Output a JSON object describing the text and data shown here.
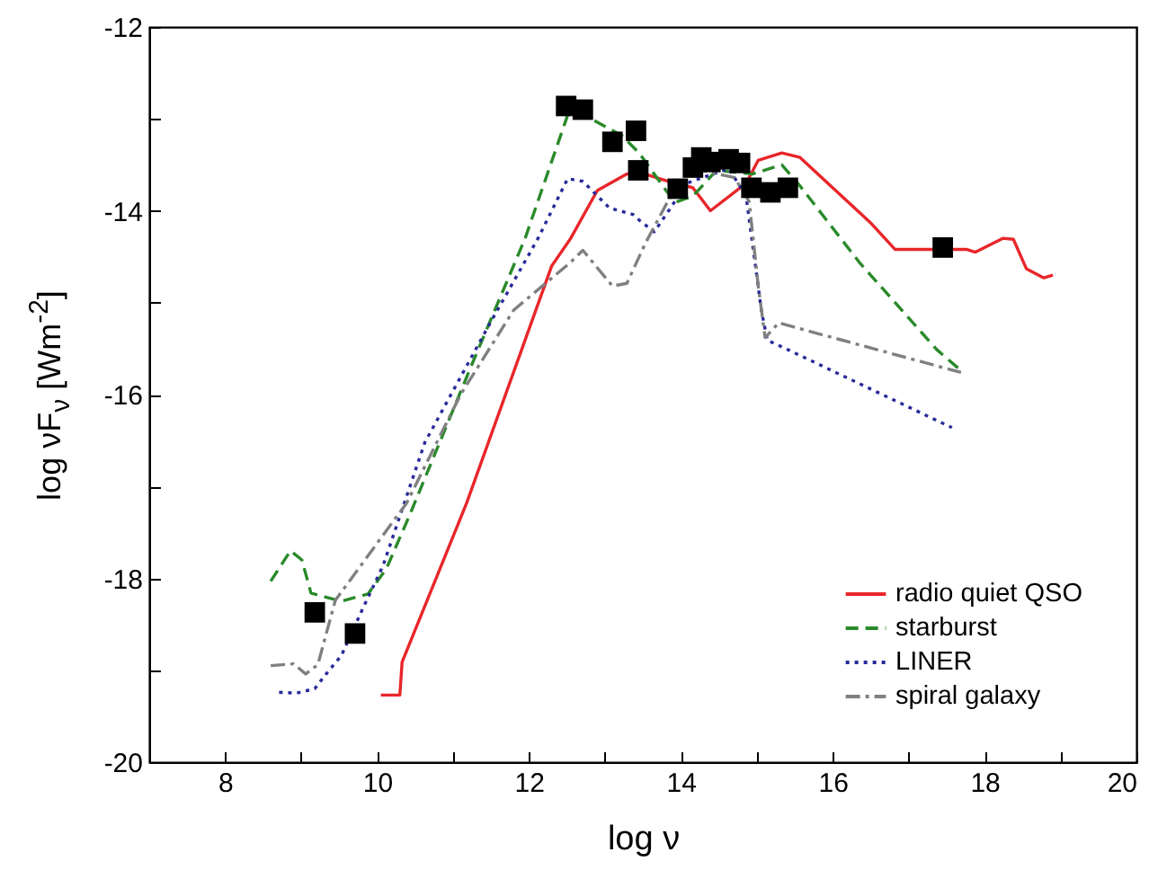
{
  "chart_data": {
    "type": "line",
    "xlabel": "log ν",
    "ylabel": "log νF$_{ν}$ [Wm$^{-2}$]",
    "xlim": [
      7,
      20
    ],
    "ylim": [
      -20,
      -12
    ],
    "xticks": [
      8,
      {
        "value": 9,
        "label": null
      },
      10,
      {
        "value": 11,
        "label": null
      },
      12,
      {
        "value": 13,
        "label": null
      },
      14,
      {
        "value": 15,
        "label": null
      },
      16,
      {
        "value": 17,
        "label": null
      },
      18,
      {
        "value": 19,
        "label": null
      },
      20
    ],
    "yticks": [
      -20,
      {
        "value": -19,
        "label": null
      },
      -18,
      {
        "value": -17,
        "label": null
      },
      -16,
      {
        "value": -15,
        "label": null
      },
      -14,
      {
        "value": -13,
        "label": null
      },
      -12
    ],
    "grid": false,
    "legend": "bottom right",
    "series": [
      {
        "name": "radio quiet QSO",
        "color": "#e8262a",
        "line_style": "solid",
        "x": [
          10.05,
          10.3,
          10.33,
          11.18,
          12.3,
          12.55,
          12.9,
          13.29,
          13.45,
          13.84,
          14.16,
          14.39,
          14.86,
          15.02,
          15.33,
          15.57,
          16.04,
          16.51,
          16.82,
          17.76,
          17.88,
          18.24,
          18.38,
          18.55,
          18.78,
          18.9
        ],
        "values": [
          -19.27,
          -19.27,
          -18.91,
          -17.18,
          -14.6,
          -14.3,
          -13.78,
          -13.6,
          -13.58,
          -13.68,
          -13.75,
          -14.0,
          -13.7,
          -13.45,
          -13.37,
          -13.42,
          -13.78,
          -14.14,
          -14.42,
          -14.42,
          -14.45,
          -14.3,
          -14.31,
          -14.63,
          -14.73,
          -14.7
        ]
      },
      {
        "name": "starburst",
        "color": "#2a8a2a",
        "line_style": "dashed",
        "x": [
          8.6,
          8.86,
          9.01,
          9.13,
          9.53,
          9.88,
          10.12,
          10.43,
          11.25,
          11.95,
          12.51,
          12.75,
          13.22,
          13.45,
          13.92,
          14.16,
          14.47,
          14.94,
          15.33,
          15.57,
          16.35,
          17.37,
          17.69
        ],
        "values": [
          -18.03,
          -17.7,
          -17.8,
          -18.16,
          -18.25,
          -18.17,
          -17.9,
          -17.31,
          -15.67,
          -14.3,
          -12.96,
          -12.97,
          -13.18,
          -13.37,
          -13.91,
          -13.84,
          -13.56,
          -13.6,
          -13.5,
          -13.73,
          -14.56,
          -15.51,
          -15.74
        ]
      },
      {
        "name": "LINER",
        "color": "#2a2a9a",
        "line_style": "dotted",
        "x": [
          8.71,
          8.94,
          9.18,
          9.33,
          9.53,
          9.8,
          10.08,
          10.63,
          11.49,
          12.12,
          12.51,
          12.71,
          13.06,
          13.37,
          13.45,
          13.65,
          13.84,
          14.08,
          14.63,
          14.86,
          15.06,
          15.14,
          15.33,
          17.57
        ],
        "values": [
          -19.24,
          -19.25,
          -19.2,
          -19.04,
          -18.84,
          -18.35,
          -17.86,
          -16.52,
          -15.22,
          -14.3,
          -13.65,
          -13.68,
          -13.97,
          -14.04,
          -14.1,
          -14.23,
          -14.0,
          -13.7,
          -13.54,
          -13.84,
          -15.08,
          -15.41,
          -15.48,
          -16.36
        ]
      },
      {
        "name": "spiral galaxy",
        "color": "#808080",
        "line_style": "dashdot",
        "x": [
          8.6,
          8.9,
          9.06,
          9.22,
          9.45,
          10.39,
          11.1,
          11.8,
          12.55,
          12.71,
          13.1,
          13.29,
          13.53,
          13.84,
          14.16,
          14.71,
          14.9,
          15.02,
          15.11,
          15.29,
          17.69
        ],
        "values": [
          -18.95,
          -18.93,
          -19.04,
          -18.94,
          -18.24,
          -17.18,
          -16.0,
          -15.08,
          -14.56,
          -14.43,
          -14.82,
          -14.79,
          -14.36,
          -13.88,
          -13.54,
          -13.64,
          -13.9,
          -14.82,
          -15.38,
          -15.22,
          -15.76
        ]
      },
      {
        "type": "scatter",
        "color": "#000000",
        "marker": "square",
        "x": [
          9.18,
          9.71,
          12.49,
          12.71,
          13.1,
          13.41,
          13.44,
          13.96,
          14.16,
          14.27,
          14.39,
          14.63,
          14.78,
          14.93,
          15.18,
          15.41,
          17.45
        ],
        "values": [
          -18.37,
          -18.6,
          -12.86,
          -12.9,
          -13.25,
          -13.13,
          -13.56,
          -13.76,
          -13.53,
          -13.42,
          -13.47,
          -13.44,
          -13.48,
          -13.75,
          -13.8,
          -13.75,
          -14.4
        ]
      }
    ]
  }
}
